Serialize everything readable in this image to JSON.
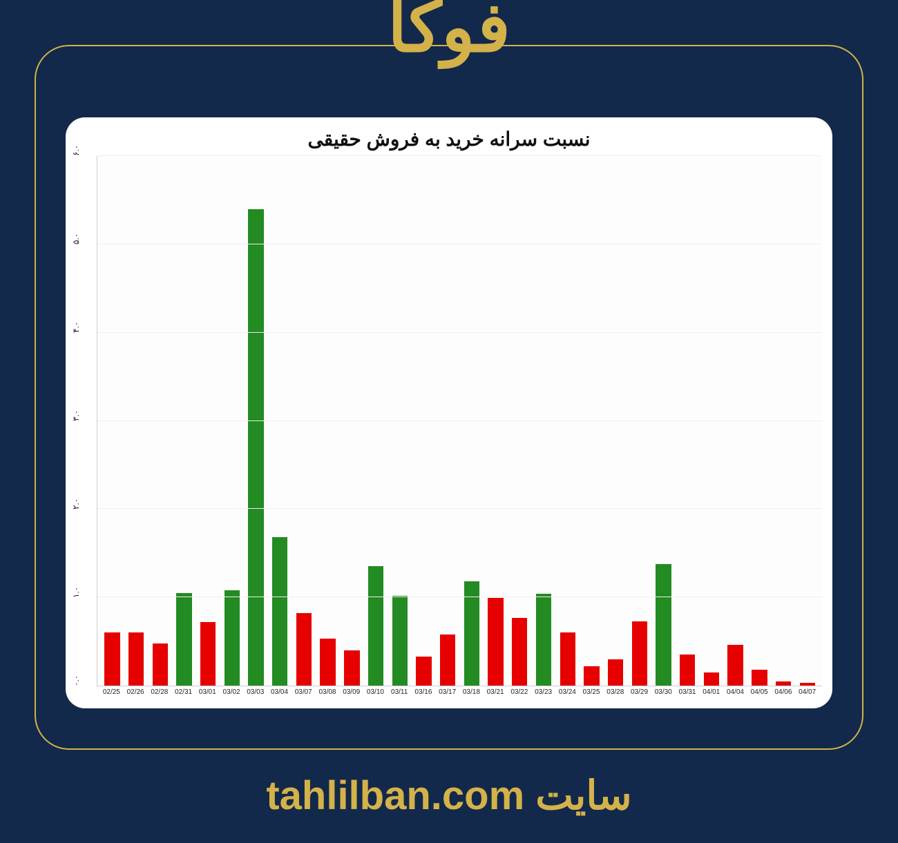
{
  "header_title": "فوکا",
  "footer_prefix": "سایت",
  "footer_site": "tahlilban.com",
  "colors": {
    "page_bg": "#13294b",
    "accent": "#d4b24a",
    "card_bg": "#ffffff",
    "bar_positive": "#228b22",
    "bar_negative": "#e60000",
    "grid": "#eeeeee",
    "axis": "#cccccc",
    "text": "#111111"
  },
  "chart": {
    "type": "bar",
    "title": "نسبت سرانه خرید به فروش حقیقی",
    "title_fontsize": 28,
    "y_ticks": [
      "۰.۰",
      "۱.۰",
      "۲.۰",
      "۳.۰",
      "۴.۰",
      "۵.۰",
      "۶.۰"
    ],
    "y_tick_values": [
      0,
      1,
      2,
      3,
      4,
      5,
      6
    ],
    "ylim": [
      0,
      6
    ],
    "x_labels": [
      "02/25",
      "02/26",
      "02/28",
      "02/31",
      "03/01",
      "03/02",
      "03/03",
      "03/04",
      "03/07",
      "03/08",
      "03/09",
      "03/10",
      "03/11",
      "03/16",
      "03/17",
      "03/18",
      "03/21",
      "03/22",
      "03/23",
      "03/24",
      "03/25",
      "03/28",
      "03/29",
      "03/30",
      "03/31",
      "04/01",
      "04/04",
      "04/05",
      "04/06",
      "04/07"
    ],
    "values": [
      0.6,
      0.6,
      0.48,
      1.05,
      0.72,
      1.08,
      5.4,
      1.68,
      0.82,
      0.53,
      0.4,
      1.35,
      1.02,
      0.33,
      0.58,
      1.18,
      0.99,
      0.77,
      1.04,
      0.6,
      0.22,
      0.3,
      0.73,
      1.38,
      0.35,
      0.15,
      0.46,
      0.18,
      0.05,
      0.03
    ],
    "label_fontsize": 10,
    "bar_width": 0.78
  }
}
